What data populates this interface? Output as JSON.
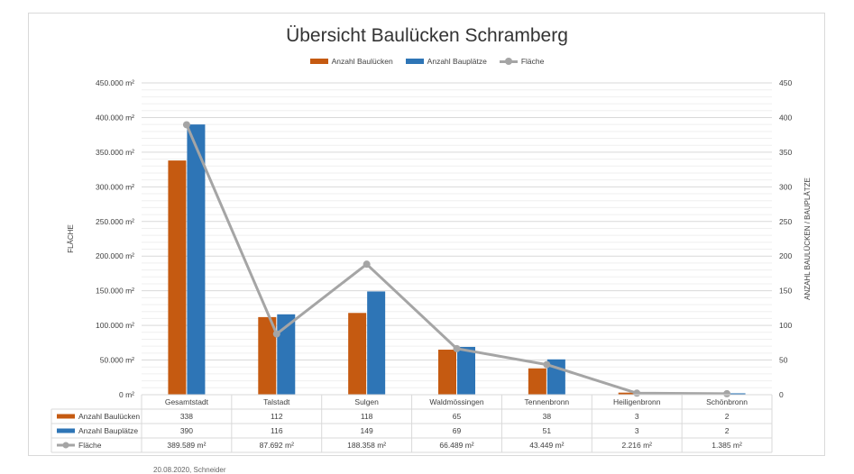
{
  "chart_data": {
    "type": "bar",
    "title": "Übersicht Baulücken Schramberg",
    "categories": [
      "Gesamtstadt",
      "Talstadt",
      "Sulgen",
      "Waldmössingen",
      "Tennenbronn",
      "Heiligenbronn",
      "Schönbronn"
    ],
    "series": [
      {
        "name": "Anzahl Baulücken",
        "type": "bar",
        "axis": "right",
        "color": "#c55a11",
        "values": [
          338,
          112,
          118,
          65,
          38,
          3,
          2
        ],
        "labels": [
          "338",
          "112",
          "118",
          "65",
          "38",
          "3",
          "2"
        ]
      },
      {
        "name": "Anzahl Bauplätze",
        "type": "bar",
        "axis": "right",
        "color": "#2e75b6",
        "values": [
          390,
          116,
          149,
          69,
          51,
          3,
          2
        ],
        "labels": [
          "390",
          "116",
          "149",
          "69",
          "51",
          "3",
          "2"
        ]
      },
      {
        "name": "Fläche",
        "type": "line",
        "axis": "left",
        "color": "#a5a5a5",
        "values": [
          389589,
          87692,
          188358,
          66489,
          43449,
          2216,
          1385
        ],
        "labels": [
          "389.589 m²",
          "87.692 m²",
          "188.358 m²",
          "66.489 m²",
          "43.449 m²",
          "2.216 m²",
          "1.385 m²"
        ]
      }
    ],
    "y_left": {
      "label": "FLÄCHE",
      "min": 0,
      "max": 450000,
      "ticks": [
        "0 m²",
        "50.000 m²",
        "100.000 m²",
        "150.000 m²",
        "200.000 m²",
        "250.000 m²",
        "300.000 m²",
        "350.000 m²",
        "400.000 m²",
        "450.000 m²"
      ]
    },
    "y_right": {
      "label": "ANZAHL BAULÜCKEN / BAUPLÄTZE",
      "min": 0,
      "max": 450,
      "ticks": [
        "0",
        "50",
        "100",
        "150",
        "200",
        "250",
        "300",
        "350",
        "400",
        "450"
      ]
    },
    "legend_position": "top-center",
    "data_table": true
  },
  "footer": "20.08.2020, Schneider"
}
